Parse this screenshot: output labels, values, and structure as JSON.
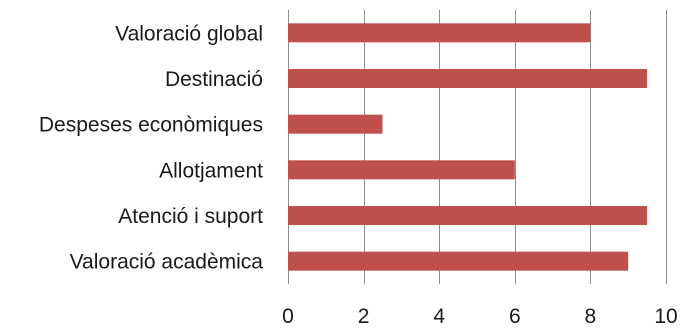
{
  "chart_data": {
    "type": "bar",
    "orientation": "horizontal",
    "categories": [
      "Valoració global",
      "Destinació",
      "Despeses econòmiques",
      "Allotjament",
      "Atenció i suport",
      "Valoració acadèmica"
    ],
    "values": [
      8,
      9.5,
      2.5,
      6,
      9.5,
      9
    ],
    "xlim": [
      0,
      10
    ],
    "xticks": [
      "0",
      "2",
      "4",
      "6",
      "8",
      "10"
    ],
    "grid": true,
    "legend": "none",
    "bar_color": "#c0504d",
    "title": "",
    "xlabel": "",
    "ylabel": ""
  }
}
